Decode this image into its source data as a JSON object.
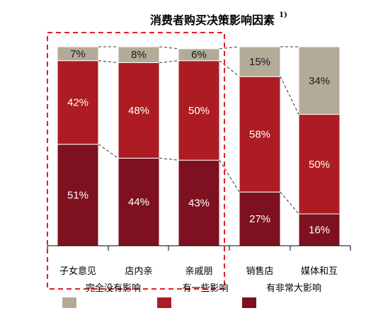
{
  "title": "消费者购买决策影响因素",
  "title_note": "1)",
  "chart_data": {
    "type": "bar",
    "stacked": true,
    "percent": true,
    "categories": [
      "子女意见",
      "店内亲",
      "亲戚朋",
      "销售店",
      "媒体和互"
    ],
    "series": [
      {
        "name": "有非常大影响",
        "color": "#7e1120",
        "values": [
          51,
          44,
          43,
          27,
          16
        ],
        "labels": [
          "51%",
          "44%",
          "43%",
          "27%",
          "16%"
        ]
      },
      {
        "name": "有一些影响",
        "color": "#ac1c22",
        "values": [
          42,
          48,
          50,
          58,
          50
        ],
        "labels": [
          "42%",
          "48%",
          "50%",
          "58%",
          "50%"
        ]
      },
      {
        "name": "完全没有影响",
        "color": "#b3ab97",
        "values": [
          7,
          8,
          6,
          15,
          34
        ],
        "labels": [
          "7%",
          "8%",
          "6%",
          "15%",
          "34%"
        ]
      }
    ],
    "ylim": [
      0,
      100
    ],
    "legend_position": "bottom",
    "highlight": {
      "categories": [
        0,
        1,
        2
      ],
      "color": "#e31e24",
      "style": "dashed"
    },
    "connectors": {
      "style": "dashed",
      "color": "#333333"
    }
  },
  "legend": {
    "labels": [
      "完全没有影响",
      "有一些影响",
      "有非常大影响"
    ]
  }
}
